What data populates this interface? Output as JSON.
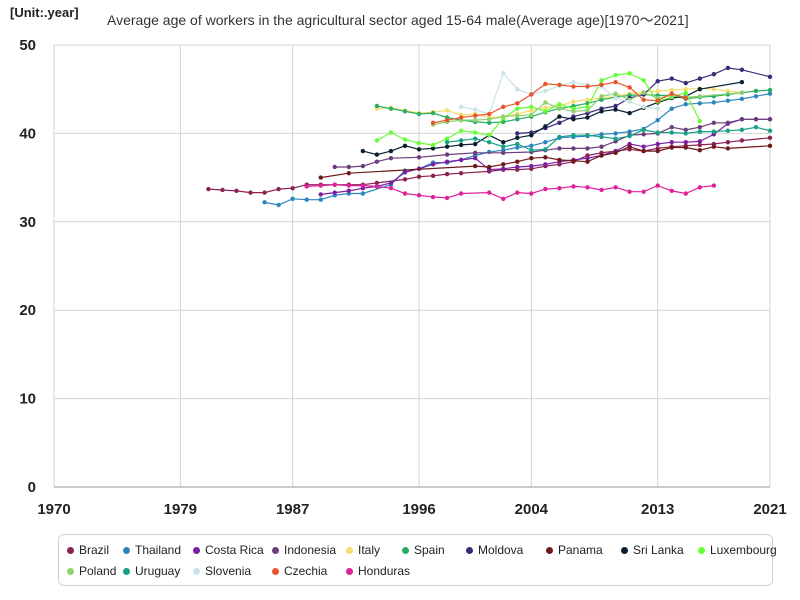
{
  "chart_data": {
    "type": "line",
    "title": "Average age of workers in the agricultural sector aged 15-64 male(Average age)[1970～2021]",
    "unit_label": "[Unit:.year]",
    "xlabel": "",
    "ylabel": "",
    "xlim": [
      1970,
      2021
    ],
    "ylim": [
      0,
      50
    ],
    "x_ticks": [
      "1970",
      "1979",
      "1987",
      "1996",
      "2004",
      "2013",
      "2021"
    ],
    "y_ticks": [
      "0",
      "10",
      "20",
      "30",
      "40",
      "50"
    ],
    "grid": true,
    "legend_position": "bottom",
    "series": [
      {
        "name": "Brazil",
        "color": "#8b2252",
        "x": [
          1981,
          1982,
          1983,
          1984,
          1985,
          1986,
          1987,
          1988,
          1989,
          1990,
          1991,
          1992,
          1993,
          1995,
          1996,
          1997,
          1998,
          1999,
          2001,
          2002,
          2003,
          2004,
          2005,
          2006,
          2007,
          2008,
          2009,
          2011,
          2012,
          2013,
          2014,
          2015,
          2016,
          2017,
          2018,
          2019,
          2021
        ],
        "values": [
          33.7,
          33.6,
          33.5,
          33.3,
          33.3,
          33.7,
          33.8,
          34.2,
          34.2,
          34.2,
          34.2,
          34.2,
          34.4,
          34.8,
          35.1,
          35.2,
          35.4,
          35.5,
          35.7,
          35.9,
          35.9,
          36.0,
          36.3,
          36.5,
          36.8,
          37.5,
          37.8,
          38.2,
          38.0,
          38.3,
          38.5,
          38.6,
          38.7,
          38.8,
          39.0,
          39.2,
          39.5
        ]
      },
      {
        "name": "Thailand",
        "color": "#2e86c1",
        "x": [
          1985,
          1986,
          1987,
          1988,
          1989,
          1990,
          1991,
          1992,
          1994,
          1995,
          1996,
          1997,
          1998,
          1999,
          2000,
          2001,
          2002,
          2003,
          2004,
          2005,
          2006,
          2007,
          2008,
          2009,
          2010,
          2011,
          2012,
          2013,
          2014,
          2015,
          2016,
          2017,
          2018,
          2019,
          2020,
          2021
        ],
        "values": [
          32.2,
          31.9,
          32.6,
          32.5,
          32.5,
          33.0,
          33.2,
          33.2,
          34.2,
          35.8,
          36.0,
          36.7,
          36.7,
          37.0,
          37.5,
          37.9,
          38.1,
          38.4,
          38.6,
          39.0,
          39.5,
          39.6,
          39.7,
          39.9,
          40.0,
          40.2,
          40.5,
          41.5,
          42.8,
          43.3,
          43.4,
          43.5,
          43.7,
          43.9,
          44.2,
          44.5
        ]
      },
      {
        "name": "Costa Rica",
        "color": "#7b1fa2",
        "x": [
          1989,
          1990,
          1991,
          1992,
          1993,
          1994,
          1995,
          1996,
          1997,
          1998,
          1999,
          2000,
          2001,
          2002,
          2003,
          2004,
          2005,
          2006,
          2007,
          2008,
          2009,
          2010,
          2011,
          2012,
          2013,
          2014,
          2015,
          2016,
          2017,
          2018,
          2019,
          2020,
          2021
        ],
        "values": [
          33.1,
          33.3,
          33.5,
          33.8,
          34.0,
          34.4,
          35.6,
          36.0,
          36.5,
          36.8,
          37.0,
          37.2,
          35.9,
          36.0,
          36.2,
          36.3,
          36.5,
          36.8,
          37.0,
          37.2,
          37.5,
          38.0,
          38.8,
          38.5,
          38.8,
          39.0,
          39.0,
          39.1,
          39.9,
          41.1,
          41.6,
          41.6,
          41.6
        ]
      },
      {
        "name": "Indonesia",
        "color": "#6a3d7c",
        "x": [
          1990,
          1991,
          1992,
          1993,
          1994,
          1996,
          1998,
          2000,
          2002,
          2004,
          2005,
          2006,
          2007,
          2008,
          2009,
          2010,
          2011,
          2012,
          2013,
          2014,
          2015,
          2016,
          2017,
          2018,
          2019,
          2020,
          2021
        ],
        "values": [
          36.2,
          36.2,
          36.3,
          36.8,
          37.2,
          37.3,
          37.6,
          37.8,
          37.8,
          37.9,
          38.1,
          38.3,
          38.3,
          38.3,
          38.5,
          39.1,
          39.8,
          39.9,
          40.0,
          40.7,
          40.4,
          40.7,
          41.2,
          41.2,
          41.6,
          41.6,
          41.6
        ]
      },
      {
        "name": "Italy",
        "color": "#f7dc6f",
        "x": [
          1993,
          1994,
          1995,
          1996,
          1997,
          1998,
          1999,
          2000,
          2001,
          2002,
          2003,
          2004,
          2005,
          2006,
          2007,
          2008,
          2009,
          2010,
          2011,
          2012,
          2013,
          2014,
          2015,
          2016,
          2017,
          2018,
          2019
        ],
        "values": [
          42.8,
          42.9,
          42.6,
          42.3,
          42.4,
          42.6,
          42.1,
          42.2,
          41.8,
          41.9,
          42.2,
          42.6,
          42.9,
          43.1,
          43.6,
          43.8,
          44.0,
          44.2,
          44.5,
          44.7,
          44.8,
          44.9,
          45.0,
          45.1,
          45.0,
          44.8,
          44.6
        ]
      },
      {
        "name": "Spain",
        "color": "#27ae60",
        "x": [
          1993,
          1994,
          1995,
          1996,
          1997,
          1998,
          1999,
          2000,
          2001,
          2002,
          2003,
          2004,
          2005,
          2006,
          2007,
          2008,
          2009,
          2010,
          2011,
          2012,
          2013,
          2014,
          2015,
          2016,
          2017,
          2018,
          2019,
          2020,
          2021
        ],
        "values": [
          43.1,
          42.8,
          42.5,
          42.2,
          42.3,
          41.8,
          41.5,
          41.3,
          41.2,
          41.3,
          41.6,
          41.9,
          42.4,
          42.8,
          43.1,
          43.4,
          43.8,
          44.1,
          44.3,
          44.4,
          44.3,
          44.3,
          43.9,
          44.1,
          44.2,
          44.4,
          44.6,
          44.8,
          44.9
        ]
      },
      {
        "name": "Moldova",
        "color": "#3a2a7a",
        "x": [
          2003,
          2004,
          2005,
          2006,
          2007,
          2008,
          2009,
          2010,
          2011,
          2012,
          2013,
          2014,
          2015,
          2016,
          2017,
          2018,
          2019,
          2021
        ],
        "values": [
          40.0,
          40.1,
          40.6,
          41.2,
          41.9,
          42.3,
          42.8,
          43.1,
          44.0,
          44.4,
          45.9,
          46.2,
          45.7,
          46.2,
          46.7,
          47.4,
          47.2,
          46.4
        ]
      },
      {
        "name": "Panama",
        "color": "#6e1a1a",
        "x": [
          1989,
          1991,
          2000,
          2001,
          2002,
          2003,
          2004,
          2005,
          2006,
          2007,
          2008,
          2009,
          2010,
          2011,
          2012,
          2013,
          2014,
          2015,
          2016,
          2017,
          2018,
          2021
        ],
        "values": [
          35.0,
          35.5,
          36.3,
          36.2,
          36.5,
          36.8,
          37.2,
          37.3,
          37.0,
          36.9,
          36.8,
          37.5,
          37.8,
          38.5,
          38.0,
          38.0,
          38.4,
          38.4,
          38.1,
          38.5,
          38.3,
          38.6
        ]
      },
      {
        "name": "Sri Lanka",
        "color": "#0b1f33",
        "x": [
          1992,
          1993,
          1994,
          1995,
          1996,
          1997,
          1998,
          1999,
          2000,
          2001,
          2002,
          2003,
          2004,
          2005,
          2006,
          2007,
          2008,
          2009,
          2010,
          2011,
          2012,
          2013,
          2014,
          2015,
          2016,
          2019
        ],
        "values": [
          38.0,
          37.6,
          38.0,
          38.6,
          38.2,
          38.3,
          38.5,
          38.7,
          38.8,
          39.8,
          39.0,
          39.5,
          39.8,
          40.8,
          41.9,
          41.6,
          41.8,
          42.5,
          42.7,
          42.3,
          42.9,
          43.5,
          44.0,
          44.2,
          45.0,
          45.8
        ]
      },
      {
        "name": "Luxembourg",
        "color": "#66ff33",
        "x": [
          1993,
          1994,
          1995,
          1996,
          1997,
          1998,
          1999,
          2000,
          2001,
          2002,
          2003,
          2004,
          2005,
          2006,
          2007,
          2008,
          2009,
          2010,
          2011,
          2012,
          2013,
          2014,
          2015,
          2016
        ],
        "values": [
          39.2,
          40.1,
          39.3,
          38.9,
          38.7,
          39.4,
          40.3,
          40.1,
          39.8,
          41.7,
          42.8,
          43.0,
          42.5,
          43.3,
          42.8,
          43.0,
          46.0,
          46.6,
          46.8,
          46.0,
          43.6,
          44.1,
          44.6,
          41.4
        ]
      },
      {
        "name": "Poland",
        "color": "#8ed16d",
        "x": [
          1997,
          1998,
          1999,
          2000,
          2001,
          2002,
          2003,
          2004,
          2005,
          2006,
          2007,
          2008,
          2009,
          2010,
          2011,
          2012,
          2013,
          2014,
          2015,
          2016,
          2019
        ],
        "values": [
          41.0,
          41.3,
          41.5,
          41.5,
          41.6,
          41.9,
          42.0,
          42.1,
          43.5,
          42.8,
          42.5,
          42.6,
          44.2,
          44.5,
          43.8,
          44.6,
          44.0,
          44.3,
          44.1,
          44.2,
          44.6
        ]
      },
      {
        "name": "Uruguay",
        "color": "#16a085",
        "x": [
          1998,
          1999,
          2000,
          2001,
          2002,
          2003,
          2004,
          2005,
          2006,
          2007,
          2008,
          2009,
          2010,
          2011,
          2012,
          2013,
          2014,
          2015,
          2016,
          2017,
          2018,
          2019,
          2020,
          2021
        ],
        "values": [
          39.0,
          39.2,
          39.4,
          39.0,
          38.5,
          38.8,
          38.1,
          38.2,
          39.6,
          39.8,
          39.8,
          39.6,
          39.4,
          39.7,
          40.4,
          40.1,
          40.1,
          40.0,
          40.2,
          40.2,
          40.3,
          40.4,
          40.7,
          40.3
        ]
      },
      {
        "name": "Slovenia",
        "color": "#c9e4e8",
        "x": [
          1999,
          2000,
          2001,
          2002,
          2003,
          2004,
          2005,
          2006,
          2007,
          2008,
          2009,
          2010,
          2011,
          2012,
          2013
        ],
        "values": [
          43.0,
          42.7,
          42.2,
          46.8,
          45.0,
          44.4,
          44.8,
          45.4,
          45.8,
          45.5,
          45.3,
          44.0,
          43.6,
          43.0,
          42.8
        ]
      },
      {
        "name": "Czechia",
        "color": "#e8542a",
        "x": [
          1997,
          1998,
          1999,
          2000,
          2001,
          2002,
          2003,
          2004,
          2005,
          2006,
          2007,
          2008,
          2009,
          2010,
          2011,
          2012,
          2013,
          2014,
          2015
        ],
        "values": [
          41.2,
          41.5,
          41.8,
          42.0,
          42.2,
          43.0,
          43.4,
          44.4,
          45.6,
          45.5,
          45.3,
          45.3,
          45.5,
          45.8,
          45.2,
          43.8,
          43.7,
          44.5,
          44.0
        ]
      },
      {
        "name": "Honduras",
        "color": "#e0219a",
        "x": [
          1988,
          1989,
          1990,
          1991,
          1992,
          1993,
          1994,
          1995,
          1996,
          1997,
          1998,
          1999,
          2001,
          2002,
          2003,
          2004,
          2005,
          2006,
          2007,
          2008,
          2009,
          2010,
          2011,
          2012,
          2013,
          2014,
          2015,
          2016,
          2017
        ],
        "values": [
          34.0,
          34.1,
          34.2,
          34.1,
          34.1,
          34.0,
          33.8,
          33.2,
          33.0,
          32.8,
          32.7,
          33.2,
          33.3,
          32.6,
          33.3,
          33.2,
          33.7,
          33.8,
          34.0,
          33.9,
          33.6,
          33.9,
          33.4,
          33.4,
          34.1,
          33.5,
          33.2,
          33.9,
          34.1
        ]
      }
    ]
  }
}
